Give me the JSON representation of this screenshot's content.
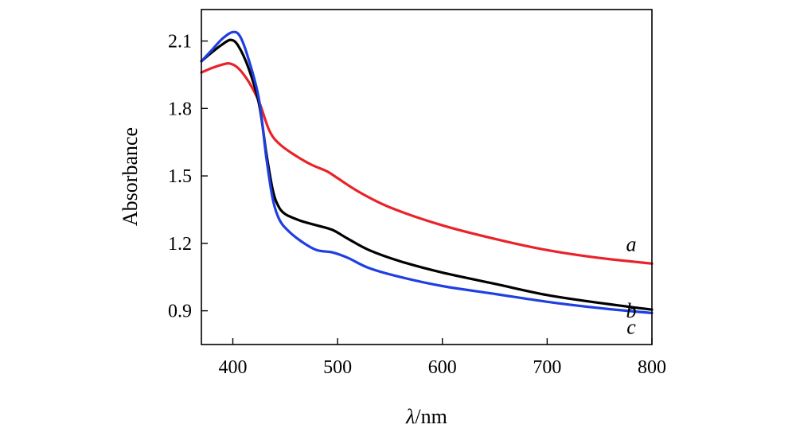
{
  "chart_data": {
    "type": "line",
    "title": "",
    "xlabel_symbol": "λ",
    "xlabel_unit": "/nm",
    "ylabel": "Absorbance",
    "xlim": [
      370,
      800
    ],
    "ylim": [
      0.75,
      2.24
    ],
    "x_ticks": [
      400,
      500,
      600,
      700,
      800
    ],
    "y_ticks": [
      0.9,
      1.2,
      1.5,
      1.8,
      2.1
    ],
    "x_tick_labels": [
      "400",
      "500",
      "600",
      "700",
      "800"
    ],
    "y_tick_labels": [
      "0.9",
      "1.2",
      "1.5",
      "1.8",
      "2.1"
    ],
    "grid": false,
    "legend": "none",
    "series": [
      {
        "name": "a",
        "color": "#e8232a",
        "x": [
          370,
          380,
          390,
          397,
          405,
          415,
          425,
          435,
          445,
          460,
          475,
          490,
          500,
          520,
          550,
          600,
          650,
          700,
          750,
          800
        ],
        "y": [
          1.96,
          1.98,
          1.995,
          2.0,
          1.98,
          1.92,
          1.83,
          1.7,
          1.64,
          1.59,
          1.55,
          1.52,
          1.49,
          1.43,
          1.36,
          1.28,
          1.22,
          1.17,
          1.135,
          1.11
        ]
      },
      {
        "name": "b",
        "color": "#000000",
        "x": [
          370,
          380,
          390,
          398,
          405,
          415,
          425,
          432,
          438,
          443,
          450,
          465,
          480,
          495,
          510,
          530,
          560,
          600,
          650,
          700,
          750,
          800
        ],
        "y": [
          2.01,
          2.05,
          2.085,
          2.105,
          2.08,
          1.98,
          1.82,
          1.6,
          1.44,
          1.37,
          1.33,
          1.3,
          1.28,
          1.26,
          1.22,
          1.17,
          1.12,
          1.07,
          1.02,
          0.97,
          0.935,
          0.905
        ]
      },
      {
        "name": "c",
        "color": "#1f3fe0",
        "x": [
          370,
          380,
          390,
          400,
          407,
          415,
          425,
          432,
          438,
          444,
          452,
          465,
          480,
          495,
          510,
          530,
          560,
          600,
          650,
          700,
          750,
          800
        ],
        "y": [
          2.01,
          2.06,
          2.11,
          2.14,
          2.12,
          2.02,
          1.84,
          1.58,
          1.4,
          1.31,
          1.26,
          1.21,
          1.17,
          1.16,
          1.135,
          1.09,
          1.05,
          1.01,
          0.975,
          0.94,
          0.912,
          0.89
        ]
      }
    ]
  }
}
